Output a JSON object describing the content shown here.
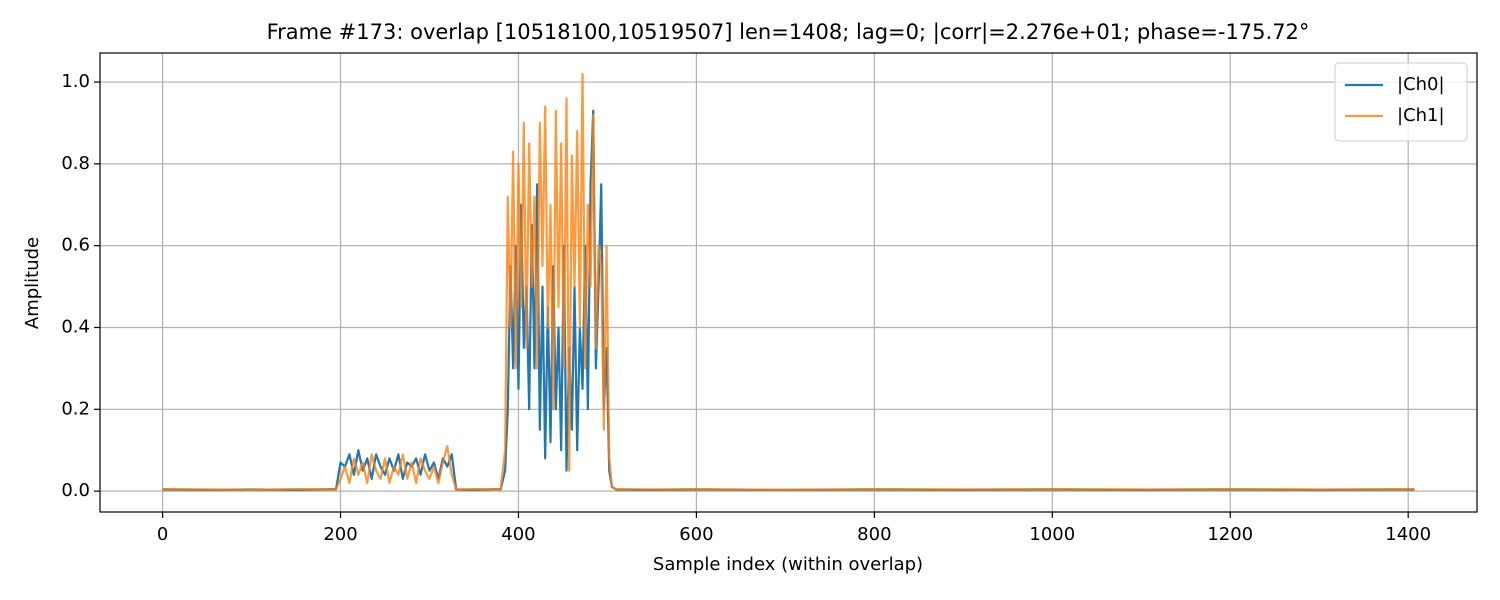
{
  "chart_data": {
    "type": "line",
    "title": "Frame #173: overlap [10518100,10519507]  len=1408; lag=0; |corr|=2.276e+01; phase=-175.72°",
    "x_label": "Sample index (within overlap)",
    "y_label": "Amplitude",
    "x": [
      0,
      50,
      100,
      150,
      195,
      200,
      205,
      210,
      215,
      220,
      225,
      230,
      235,
      240,
      245,
      250,
      255,
      260,
      265,
      270,
      275,
      280,
      285,
      290,
      295,
      300,
      305,
      310,
      315,
      320,
      325,
      330,
      350,
      380,
      385,
      388,
      391,
      394,
      397,
      400,
      403,
      406,
      409,
      412,
      415,
      418,
      421,
      424,
      427,
      430,
      433,
      436,
      439,
      442,
      445,
      448,
      451,
      454,
      457,
      460,
      463,
      466,
      469,
      472,
      475,
      478,
      481,
      484,
      487,
      490,
      493,
      496,
      499,
      502,
      505,
      510,
      550,
      600,
      700,
      800,
      900,
      1000,
      1100,
      1200,
      1300,
      1407
    ],
    "series": [
      {
        "name": "|Ch0|",
        "color": "#1f77b4",
        "values": [
          0.004,
          0.003,
          0.004,
          0.003,
          0.005,
          0.07,
          0.06,
          0.09,
          0.04,
          0.1,
          0.05,
          0.08,
          0.03,
          0.09,
          0.06,
          0.04,
          0.08,
          0.05,
          0.09,
          0.03,
          0.07,
          0.06,
          0.08,
          0.04,
          0.09,
          0.05,
          0.07,
          0.03,
          0.08,
          0.06,
          0.09,
          0.004,
          0.003,
          0.005,
          0.05,
          0.2,
          0.55,
          0.3,
          0.6,
          0.25,
          0.7,
          0.35,
          0.5,
          0.2,
          0.65,
          0.3,
          0.75,
          0.15,
          0.5,
          0.08,
          0.45,
          0.12,
          0.55,
          0.2,
          0.4,
          0.1,
          0.6,
          0.05,
          0.35,
          0.15,
          0.5,
          0.1,
          0.4,
          0.25,
          0.6,
          0.2,
          0.75,
          0.93,
          0.3,
          0.5,
          0.75,
          0.2,
          0.35,
          0.05,
          0.01,
          0.004,
          0.003,
          0.004,
          0.003,
          0.004,
          0.003,
          0.004,
          0.003,
          0.004,
          0.003,
          0.004
        ]
      },
      {
        "name": "|Ch1|",
        "color": "#ff7f0e",
        "values": [
          0.005,
          0.004,
          0.003,
          0.005,
          0.004,
          0.03,
          0.06,
          0.02,
          0.08,
          0.04,
          0.07,
          0.02,
          0.09,
          0.05,
          0.03,
          0.08,
          0.02,
          0.06,
          0.04,
          0.09,
          0.03,
          0.07,
          0.02,
          0.08,
          0.05,
          0.03,
          0.06,
          0.02,
          0.07,
          0.11,
          0.04,
          0.004,
          0.005,
          0.004,
          0.1,
          0.72,
          0.4,
          0.83,
          0.3,
          0.8,
          0.45,
          0.9,
          0.35,
          0.85,
          0.5,
          0.72,
          0.3,
          0.9,
          0.55,
          0.94,
          0.4,
          0.7,
          0.2,
          0.93,
          0.45,
          0.85,
          0.3,
          0.96,
          0.05,
          0.82,
          0.5,
          0.88,
          0.4,
          1.02,
          0.3,
          0.7,
          0.5,
          0.92,
          0.35,
          0.6,
          0.55,
          0.15,
          0.6,
          0.08,
          0.01,
          0.005,
          0.004,
          0.005,
          0.003,
          0.005,
          0.004,
          0.005,
          0.004,
          0.005,
          0.004,
          0.005
        ]
      }
    ],
    "xlim": [
      -70.35,
      1477.35
    ],
    "ylim": [
      -0.051,
      1.071
    ],
    "xticks": [
      0,
      200,
      400,
      600,
      800,
      1000,
      1200,
      1400
    ],
    "yticks": [
      {
        "value": 0,
        "label": "0.0"
      },
      0.2,
      0.4,
      0.6,
      0.8,
      {
        "value": 1,
        "label": "1.0"
      }
    ],
    "grid": true,
    "legend": "upper-right"
  }
}
